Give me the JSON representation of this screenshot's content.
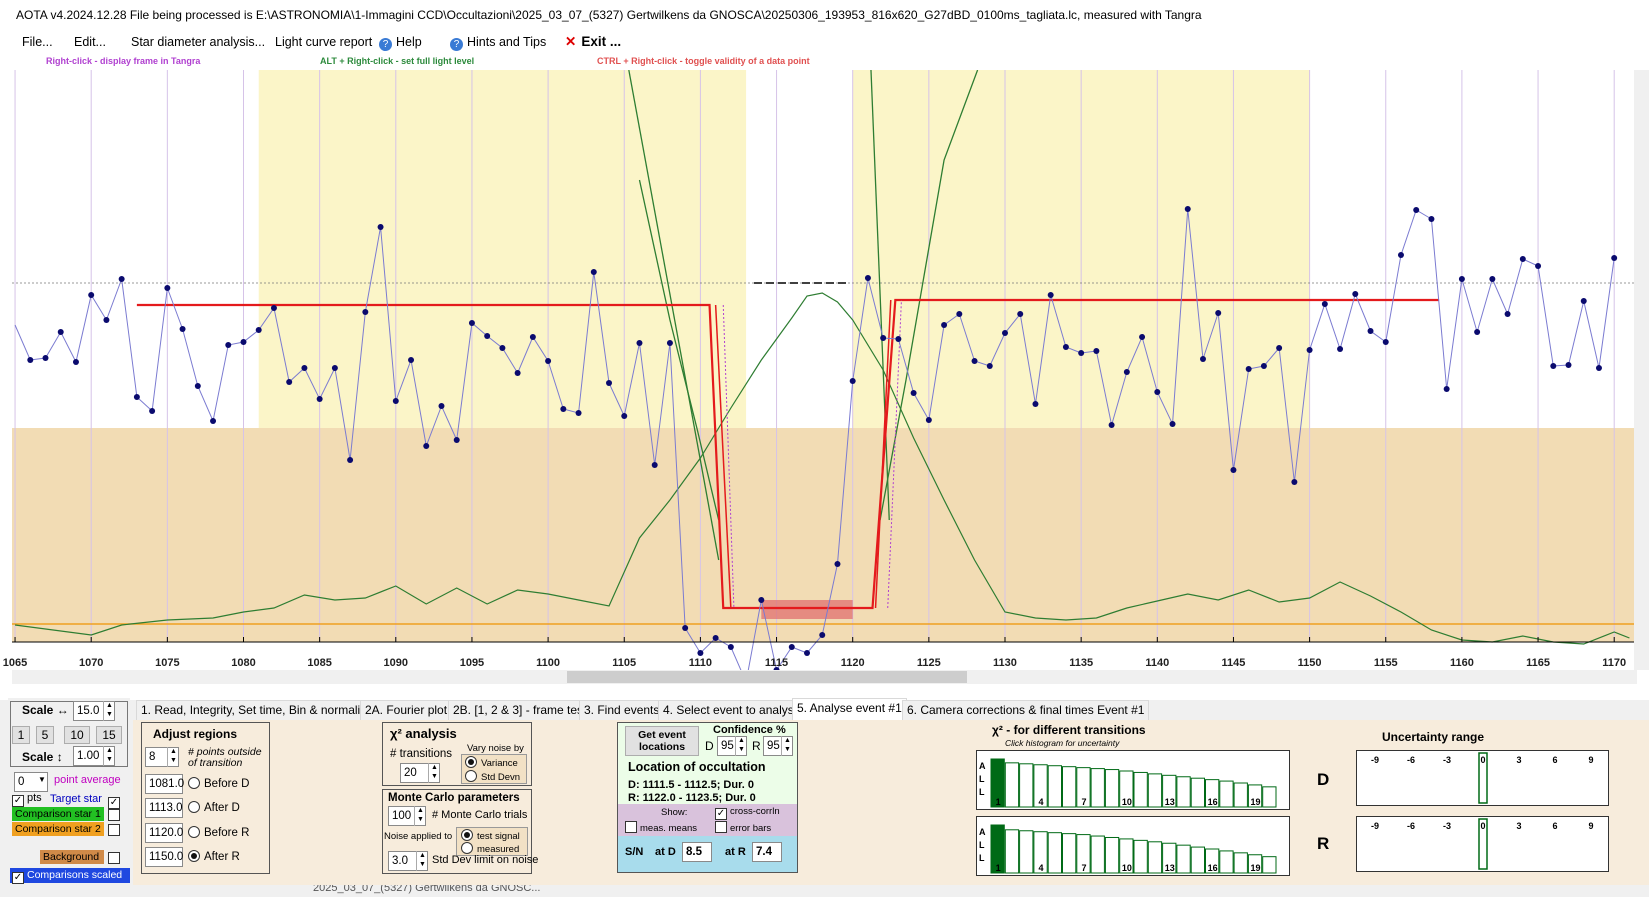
{
  "window": {
    "title": "AOTA v4.2024.12.28    File being processed is E:\\ASTRONOMIA\\1-Immagini CCD\\Occultazioni\\2025_03_07_(5327) Gertwilkens da GNOSCA\\20250306_193953_816x620_G27dBD_0100ms_tagliata.lc, measured with Tangra"
  },
  "menu": {
    "file": "File...",
    "edit": "Edit...",
    "star_diameter": "Star diameter analysis...",
    "light_curve_report": "Light curve report",
    "help": "Help",
    "hints": "Hints and Tips",
    "exit": "Exit ..."
  },
  "hints": {
    "right_click": "Right-click  -  display frame in Tangra",
    "alt_right_click": "ALT + Right-click  -  set full light level",
    "ctrl_right_click": "CTRL + Right-click  -  toggle validity of a data point"
  },
  "plot": {
    "x_ticks": [
      1065,
      1070,
      1075,
      1080,
      1085,
      1090,
      1095,
      1100,
      1105,
      1110,
      1115,
      1120,
      1125,
      1130,
      1135,
      1140,
      1145,
      1150,
      1155,
      1160,
      1165,
      1170
    ],
    "x_range": [
      1064.8,
      1171.3
    ],
    "colors": {
      "data_line": "#7b7bd1",
      "data_point": "#0a0a6e",
      "model": "#e41a1c",
      "yellow_region": "#fbf5c8",
      "lower_band": "#f2dcb4",
      "green": "#2e7d32",
      "orange": "#f0a020"
    },
    "target_star": [
      [
        1065,
        255
      ],
      [
        1066,
        290
      ],
      [
        1067,
        288
      ],
      [
        1068,
        262
      ],
      [
        1069,
        292
      ],
      [
        1070,
        225
      ],
      [
        1071,
        250
      ],
      [
        1072,
        209
      ],
      [
        1073,
        327
      ],
      [
        1074,
        341
      ],
      [
        1075,
        218
      ],
      [
        1076,
        259
      ],
      [
        1077,
        316
      ],
      [
        1078,
        351
      ],
      [
        1079,
        275
      ],
      [
        1080,
        272
      ],
      [
        1081,
        260
      ],
      [
        1082,
        238
      ],
      [
        1083,
        312
      ],
      [
        1084,
        298
      ],
      [
        1085,
        329
      ],
      [
        1086,
        298
      ],
      [
        1087,
        390
      ],
      [
        1088,
        242
      ],
      [
        1089,
        157
      ],
      [
        1090,
        331
      ],
      [
        1091,
        290
      ],
      [
        1092,
        376
      ],
      [
        1093,
        336
      ],
      [
        1094,
        370
      ],
      [
        1095,
        253
      ],
      [
        1096,
        266
      ],
      [
        1097,
        278
      ],
      [
        1098,
        303
      ],
      [
        1099,
        267
      ],
      [
        1100,
        291
      ],
      [
        1101,
        339
      ],
      [
        1102,
        343
      ],
      [
        1103,
        202
      ],
      [
        1104,
        313
      ],
      [
        1105,
        346
      ],
      [
        1106,
        273
      ],
      [
        1107,
        395
      ],
      [
        1108,
        273
      ],
      [
        1109,
        558
      ],
      [
        1110,
        583
      ],
      [
        1111,
        568
      ],
      [
        1112,
        577
      ],
      [
        1113,
        612
      ],
      [
        1114,
        530
      ],
      [
        1115,
        600
      ],
      [
        1116,
        577
      ],
      [
        1117,
        583
      ],
      [
        1118,
        565
      ],
      [
        1119,
        494
      ],
      [
        1120,
        311
      ],
      [
        1121,
        208
      ],
      [
        1122,
        268
      ],
      [
        1123,
        269
      ],
      [
        1124,
        323
      ],
      [
        1125,
        350
      ],
      [
        1126,
        255
      ],
      [
        1127,
        244
      ],
      [
        1128,
        291
      ],
      [
        1129,
        296
      ],
      [
        1130,
        263
      ],
      [
        1131,
        244
      ],
      [
        1132,
        334
      ],
      [
        1133,
        225
      ],
      [
        1134,
        277
      ],
      [
        1135,
        283
      ],
      [
        1136,
        281
      ],
      [
        1137,
        355
      ],
      [
        1138,
        302
      ],
      [
        1139,
        267
      ],
      [
        1140,
        322
      ],
      [
        1141,
        354
      ],
      [
        1142,
        139
      ],
      [
        1143,
        289
      ],
      [
        1144,
        243
      ],
      [
        1145,
        400
      ],
      [
        1146,
        299
      ],
      [
        1147,
        296
      ],
      [
        1148,
        278
      ],
      [
        1149,
        412
      ],
      [
        1150,
        280
      ],
      [
        1151,
        234
      ],
      [
        1152,
        279
      ],
      [
        1153,
        224
      ],
      [
        1154,
        261
      ],
      [
        1155,
        272
      ],
      [
        1156,
        185
      ],
      [
        1157,
        140
      ],
      [
        1158,
        149
      ],
      [
        1159,
        319
      ],
      [
        1160,
        209
      ],
      [
        1161,
        262
      ],
      [
        1162,
        209
      ],
      [
        1163,
        244
      ],
      [
        1164,
        189
      ],
      [
        1165,
        196
      ],
      [
        1166,
        296
      ],
      [
        1167,
        295
      ],
      [
        1168,
        231
      ],
      [
        1169,
        298
      ],
      [
        1170,
        188
      ]
    ],
    "model_baseline_left": [
      1073,
      1110.6
    ],
    "model_bottom": [
      1111.5,
      1121.3
    ],
    "model_baseline_right": [
      1122.8,
      1158.5
    ]
  },
  "tabs": [
    "1.  Read, Integrity, Set time, Bin & normalise",
    "2A. Fourier plot",
    "2B. [1, 2 & 3] - frame test",
    "3. Find events",
    "4. Select event to analyse",
    "5. Analyse event #1",
    "6. Camera corrections & final times Event #1"
  ],
  "left_panel": {
    "scale_h_label": "Scale ↔",
    "scale_h_value": "15.0",
    "scale_buttons": [
      "1",
      "5",
      "10",
      "15"
    ],
    "scale_v_label": "Scale ↕",
    "scale_v_value": "1.00",
    "point_average_value": "0",
    "point_average_label": "point average",
    "pts_label": "pts",
    "target_star": "Target star",
    "comparison_star_1": "Comparison star 1",
    "comparison_star_2": "Comparison star 2",
    "background": "Background",
    "comparisons_scaled": "Comparisons scaled"
  },
  "adjust_regions": {
    "title": "Adjust regions",
    "points_value": "8",
    "points_label": "# points outside of transition",
    "rows": [
      {
        "value": "1081.0",
        "label": "Before D",
        "selected": false
      },
      {
        "value": "1113.0",
        "label": "After D",
        "selected": false
      },
      {
        "value": "1120.0",
        "label": "Before R",
        "selected": false
      },
      {
        "value": "1150.0",
        "label": "After R",
        "selected": true
      }
    ]
  },
  "chi2_analysis": {
    "title": "χ² analysis",
    "transitions_label": "# transitions",
    "transitions_value": "20",
    "vary_noise_label": "Vary noise by",
    "variance": "Variance",
    "std_devn": "Std Devn"
  },
  "monte_carlo": {
    "title": "Monte Carlo parameters",
    "trials_value": "100",
    "trials_label": "# Monte Carlo trials",
    "noise_applied_label": "Noise applied to",
    "test_signal": "test signal",
    "measured": "measured",
    "std_dev_value": "3.0",
    "std_dev_label": "Std Dev limit on noise"
  },
  "location": {
    "get_event_button": "Get event locations",
    "confidence_label": "Confidence %",
    "d_label": "D",
    "d_value": "95",
    "r_label": "R",
    "r_value": "95",
    "title": "Location of occultation",
    "d_line": "D: 1111.5 - 1112.5; Dur. 0",
    "r_line": "R: 1122.0 - 1123.5; Dur. 0",
    "show_label": "Show:",
    "cross_corrln": "cross-corrln",
    "meas_means": "meas. means",
    "error_bars": "error bars",
    "sn_label": "S/N",
    "at_d_label": "at D",
    "at_d_value": "8.5",
    "at_r_label": "at R",
    "at_r_value": "7.4"
  },
  "chi2_hist": {
    "title": "χ² - for different transitions",
    "subtitle": "Click histogram for uncertainty",
    "axis_label": "A L L",
    "ticks": [
      "1",
      "4",
      "7",
      "10",
      "13",
      "16",
      "19"
    ],
    "d_label": "D",
    "r_label": "R",
    "d_values": [
      1.0,
      0.92,
      0.9,
      0.88,
      0.86,
      0.84,
      0.82,
      0.8,
      0.78,
      0.75,
      0.72,
      0.69,
      0.66,
      0.63,
      0.6,
      0.57,
      0.54,
      0.5,
      0.46,
      0.42
    ],
    "r_values": [
      1.0,
      0.9,
      0.88,
      0.86,
      0.84,
      0.82,
      0.8,
      0.77,
      0.74,
      0.71,
      0.68,
      0.65,
      0.62,
      0.58,
      0.54,
      0.5,
      0.46,
      0.42,
      0.38,
      0.34
    ]
  },
  "uncertainty": {
    "title": "Uncertainty range",
    "ticks": [
      "-9",
      "-6",
      "-3",
      "0",
      "3",
      "6",
      "9"
    ]
  },
  "taskbar_text": "2025_03_07_(5327) Gertwilkens da GNOSC..."
}
